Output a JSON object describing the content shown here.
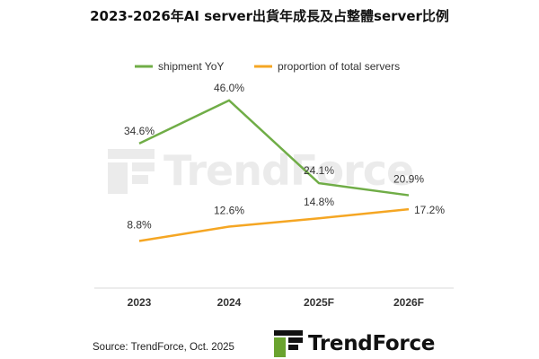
{
  "title": "2023-2026年AI server出貨年成長及占整體server比例",
  "source": "Source: TrendForce, Oct. 2025",
  "brand": {
    "name": "TrendForce",
    "watermark": "TrendForce",
    "icon": "trendforce-logo-icon",
    "colors": {
      "green": "#6aa32f",
      "dark": "#111111"
    }
  },
  "chart_data": {
    "type": "line",
    "categories": [
      "2023",
      "2024",
      "2025F",
      "2026F"
    ],
    "series": [
      {
        "name": "shipment YoY",
        "color": "#70ad47",
        "values": [
          34.6,
          46.0,
          24.1,
          20.9
        ],
        "labels": [
          "34.6%",
          "46.0%",
          "24.1%",
          "20.9%"
        ]
      },
      {
        "name": "proportion of total servers",
        "color": "#f5a623",
        "values": [
          8.8,
          12.6,
          14.8,
          17.2
        ],
        "labels": [
          "8.8%",
          "12.6%",
          "14.8%",
          "17.2%"
        ]
      }
    ],
    "legend_position": "top",
    "grid": false,
    "ylim": [
      -2,
      50
    ],
    "yaxis_visible": false
  }
}
